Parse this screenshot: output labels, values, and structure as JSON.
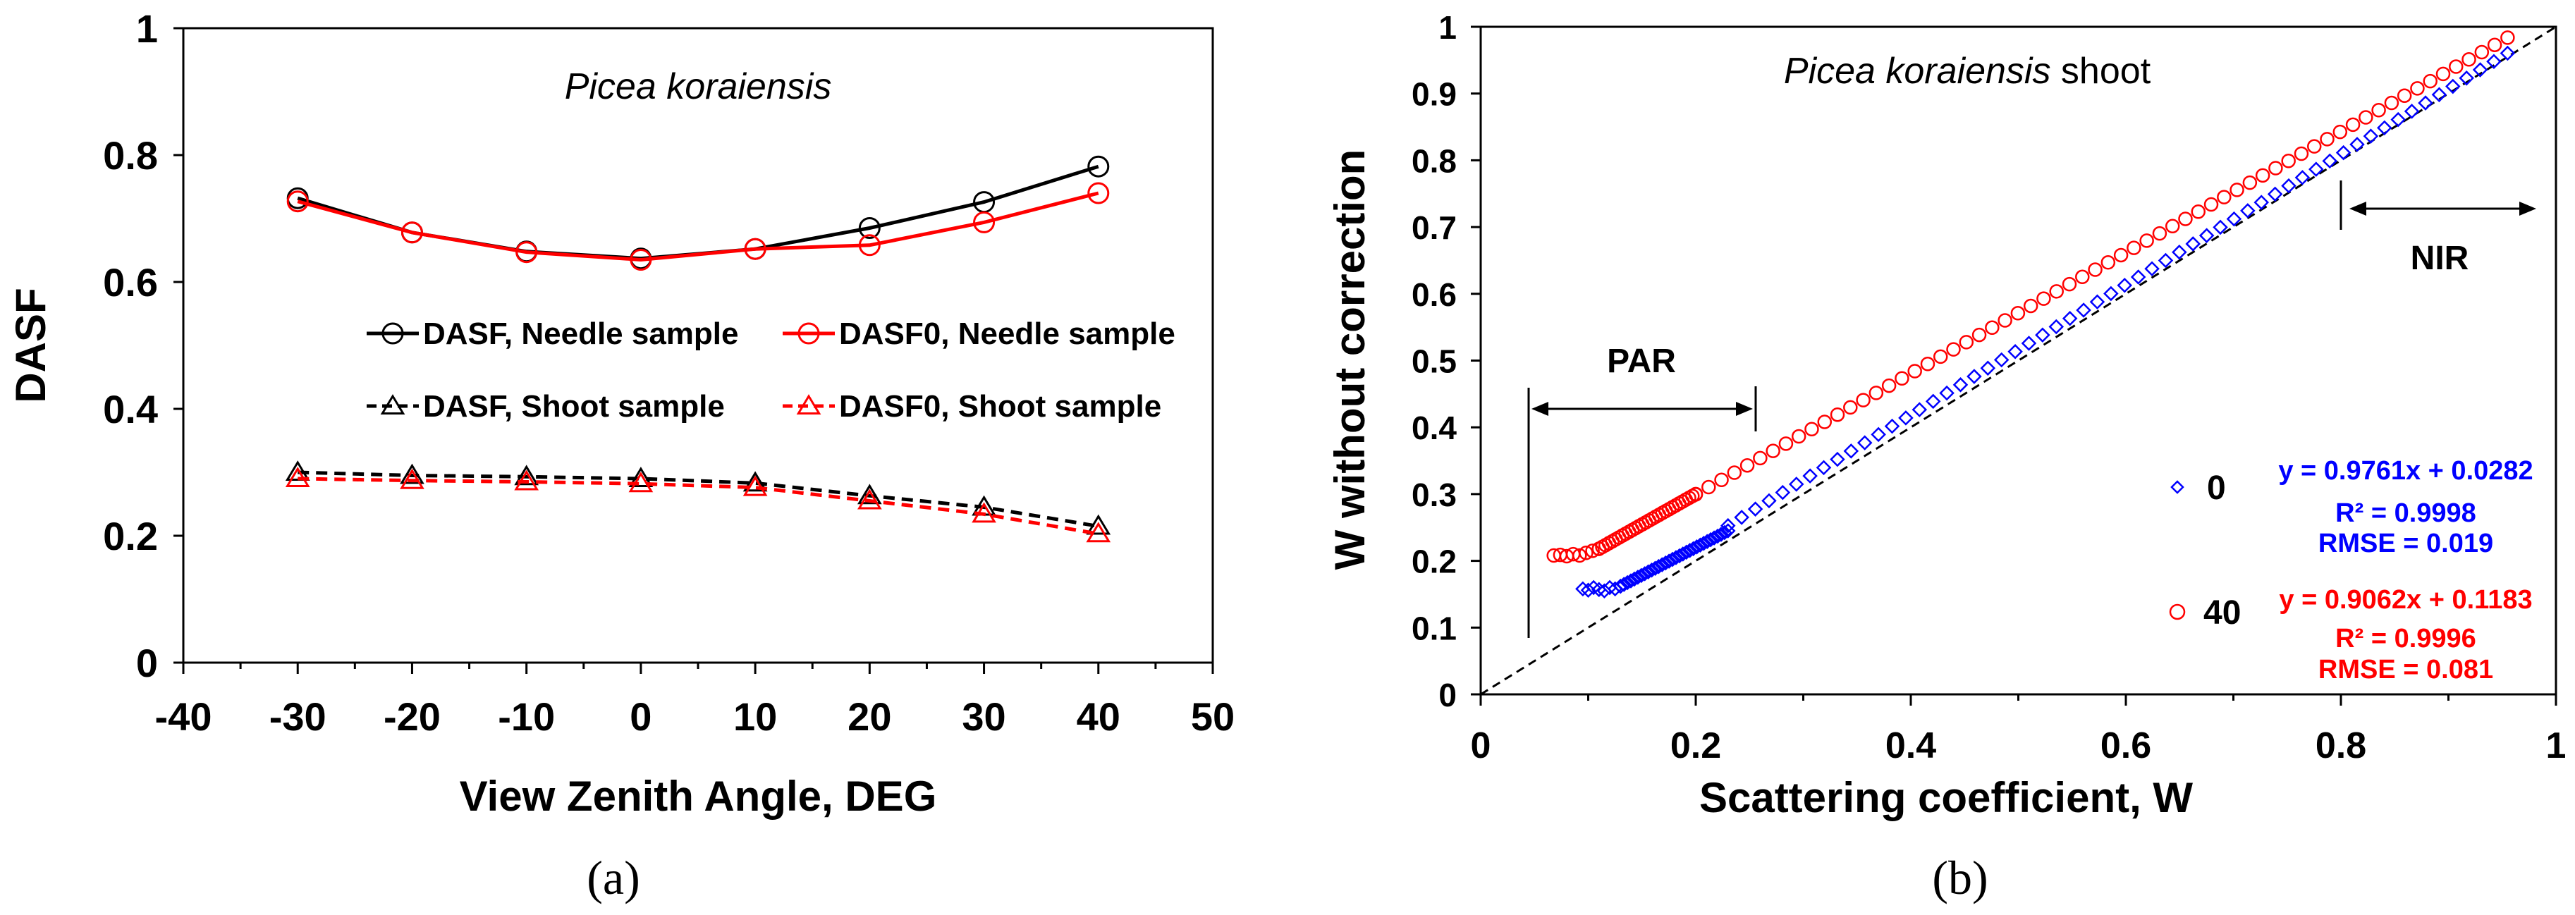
{
  "chart_data": [
    {
      "id": "a",
      "type": "line",
      "title": "Picea koraiensis",
      "xlabel": "View Zenith Angle, DEG",
      "ylabel": "DASF",
      "panel_label": "(a)",
      "xlim": [
        -40,
        50
      ],
      "ylim": [
        0,
        1
      ],
      "xticks": [
        "-40",
        "-30",
        "-20",
        "-10",
        "0",
        "10",
        "20",
        "30",
        "40",
        "50"
      ],
      "yticks": [
        "0",
        "0.2",
        "0.4",
        "0.6",
        "0.8",
        "1"
      ],
      "x": [
        -30,
        -20,
        -10,
        0,
        10,
        20,
        30,
        40
      ],
      "series": [
        {
          "name": "DASF, Needle sample",
          "color": "#000000",
          "marker": "circle",
          "dash": false,
          "values": [
            0.732,
            0.678,
            0.648,
            0.637,
            0.652,
            0.685,
            0.726,
            0.782
          ]
        },
        {
          "name": "DASF0, Needle sample",
          "color": "#ff0000",
          "marker": "circle",
          "dash": false,
          "values": [
            0.727,
            0.678,
            0.647,
            0.635,
            0.652,
            0.658,
            0.694,
            0.74
          ]
        },
        {
          "name": "DASF, Shoot sample",
          "color": "#000000",
          "marker": "triangle",
          "dash": true,
          "values": [
            0.3,
            0.295,
            0.293,
            0.29,
            0.283,
            0.263,
            0.245,
            0.215
          ]
        },
        {
          "name": "DASF0, Shoot sample",
          "color": "#ff0000",
          "marker": "triangle",
          "dash": true,
          "values": [
            0.29,
            0.287,
            0.285,
            0.282,
            0.276,
            0.255,
            0.234,
            0.203
          ]
        }
      ]
    },
    {
      "id": "b",
      "type": "scatter",
      "title_italic": "Picea koraiensis",
      "title_rest": " shoot",
      "xlabel": "Scattering coefficient, W",
      "ylabel": "W without correction",
      "panel_label": "(b)",
      "xlim": [
        0,
        1
      ],
      "ylim": [
        0,
        1
      ],
      "xticks": [
        "0",
        "0.2",
        "0.4",
        "0.6",
        "0.8",
        "1"
      ],
      "yticks": [
        "0",
        "0.1",
        "0.2",
        "0.3",
        "0.4",
        "0.5",
        "0.6",
        "0.7",
        "0.8",
        "0.9",
        "1"
      ],
      "reference_line": "1:1",
      "annotations": {
        "par": "PAR",
        "nir": "NIR"
      },
      "series": [
        {
          "name": "0",
          "color": "#0000ff",
          "marker": "diamond",
          "equation": "y = 0.9761x + 0.0282",
          "r2": "R² = 0.9998",
          "rmse": "RMSE = 0.019",
          "segments": [
            {
              "x": [
                0.095,
                0.1,
                0.105,
                0.11,
                0.115,
                0.12,
                0.125,
                0.13
              ],
              "y": [
                0.158,
                0.156,
                0.16,
                0.157,
                0.155,
                0.16,
                0.158,
                0.162
              ]
            },
            {
              "x0": 0.13,
              "x1": 0.23,
              "y0": 0.162,
              "y1": 0.245,
              "n": 32
            },
            {
              "x0": 0.23,
              "x1": 0.955,
              "slope": 0.9761,
              "intercept": 0.0282,
              "n": 58
            }
          ]
        },
        {
          "name": "40",
          "color": "#ff0000",
          "marker": "circle",
          "equation": "y = 0.9062x + 0.1183",
          "r2": "R² = 0.9996",
          "rmse": "RMSE = 0.081",
          "segments": [
            {
              "x": [
                0.068,
                0.074,
                0.08,
                0.086,
                0.092,
                0.098,
                0.104,
                0.11
              ],
              "y": [
                0.208,
                0.209,
                0.207,
                0.21,
                0.208,
                0.212,
                0.215,
                0.218
              ]
            },
            {
              "x0": 0.11,
              "x1": 0.2,
              "y0": 0.218,
              "y1": 0.3,
              "n": 30
            },
            {
              "x0": 0.2,
              "x1": 0.955,
              "slope": 0.9062,
              "intercept": 0.1183,
              "n": 64
            }
          ]
        }
      ]
    }
  ]
}
